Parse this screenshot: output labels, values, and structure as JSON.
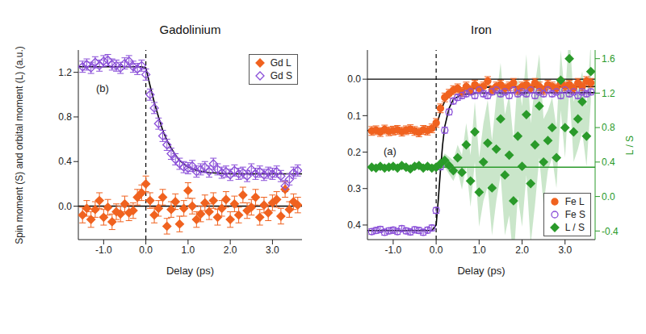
{
  "chart_data": [
    {
      "type": "scatter",
      "title": "Gadolinium",
      "x_label": "Delay (ps)",
      "y_label": "Spin moment (S) and orbital moment (L) (a.u.)",
      "annotation": "(b)",
      "legend": "upper right",
      "xlim": [
        -1.6,
        3.7
      ],
      "xticks": [
        {
          "value": -1,
          "label": "-1.0"
        },
        {
          "value": 0,
          "label": "0.0"
        },
        {
          "value": 1,
          "label": "1.0"
        },
        {
          "value": 2,
          "label": "2.0"
        },
        {
          "value": 3,
          "label": "3.0"
        }
      ],
      "ylim": [
        -0.3,
        1.4
      ],
      "yticks": [
        {
          "value": 0,
          "label": "0.0"
        },
        {
          "value": 0.4,
          "label": "0.4"
        },
        {
          "value": 0.8,
          "label": "0.8"
        },
        {
          "value": 1.2,
          "label": "1.2"
        }
      ],
      "reference_x": 0,
      "x": [
        -1.5,
        -1.4,
        -1.3,
        -1.2,
        -1.1,
        -1.0,
        -0.9,
        -0.8,
        -0.7,
        -0.6,
        -0.5,
        -0.4,
        -0.3,
        -0.2,
        -0.1,
        0.0,
        0.1,
        0.2,
        0.3,
        0.4,
        0.5,
        0.6,
        0.7,
        0.8,
        0.9,
        1.0,
        1.1,
        1.2,
        1.3,
        1.4,
        1.5,
        1.6,
        1.7,
        1.8,
        1.9,
        2.0,
        2.1,
        2.2,
        2.3,
        2.4,
        2.5,
        2.6,
        2.7,
        2.8,
        2.9,
        3.0,
        3.1,
        3.2,
        3.3,
        3.4,
        3.5,
        3.6
      ],
      "series": [
        {
          "name": "Gd L",
          "color": "#f0621f",
          "marker": "diamond",
          "error": 0.07,
          "values": [
            -0.08,
            -0.02,
            -0.12,
            -0.03,
            0.05,
            -0.1,
            -0.01,
            -0.14,
            -0.05,
            -0.07,
            0.02,
            -0.06,
            -0.04,
            0.08,
            0.12,
            0.2,
            0.05,
            -0.08,
            -0.02,
            0.08,
            -0.18,
            -0.03,
            0.04,
            -0.16,
            -0.02,
            0.14,
            0.0,
            -0.12,
            -0.07,
            0.03,
            -0.05,
            0.05,
            -0.1,
            -0.02,
            0.06,
            -0.12,
            0.02,
            -0.08,
            0.1,
            -0.04,
            -0.01,
            0.08,
            -0.1,
            0.01,
            -0.06,
            0.03,
            0.06,
            -0.09,
            0.15,
            -0.03,
            0.04,
            0.01
          ],
          "fit": {
            "color": "#000000",
            "x": [
              -1.6,
              3.7
            ],
            "values": [
              0,
              0
            ]
          }
        },
        {
          "name": "Gd S",
          "color": "#8a4fd8",
          "marker": "open_diamond",
          "error": 0.05,
          "values": [
            1.25,
            1.27,
            1.24,
            1.29,
            1.26,
            1.3,
            1.31,
            1.27,
            1.26,
            1.24,
            1.28,
            1.3,
            1.25,
            1.23,
            1.26,
            1.18,
            1.0,
            0.88,
            0.74,
            0.63,
            0.55,
            0.47,
            0.42,
            0.38,
            0.35,
            0.34,
            0.36,
            0.31,
            0.33,
            0.35,
            0.31,
            0.38,
            0.33,
            0.3,
            0.31,
            0.28,
            0.32,
            0.29,
            0.3,
            0.27,
            0.33,
            0.29,
            0.31,
            0.28,
            0.3,
            0.29,
            0.31,
            0.27,
            0.18,
            0.24,
            0.3,
            0.32
          ],
          "fit": {
            "color": "#000000",
            "x": [
              -1.6,
              -0.1,
              0.0,
              0.1,
              0.2,
              0.3,
              0.4,
              0.5,
              0.6,
              0.7,
              0.8,
              0.9,
              1.0,
              1.2,
              1.5,
              2.0,
              3.7
            ],
            "values": [
              1.25,
              1.25,
              1.24,
              1.08,
              0.93,
              0.8,
              0.68,
              0.59,
              0.52,
              0.46,
              0.41,
              0.38,
              0.35,
              0.32,
              0.3,
              0.29,
              0.29
            ]
          }
        }
      ]
    },
    {
      "type": "scatter",
      "title": "Iron",
      "x_label": "Delay (ps)",
      "y2_label": "L / S",
      "annotation": "(a)",
      "legend": "lower right",
      "xlim": [
        -1.6,
        3.7
      ],
      "xticks": [
        {
          "value": -1,
          "label": "-1.0"
        },
        {
          "value": 0,
          "label": "0.0"
        },
        {
          "value": 1,
          "label": "1.0"
        },
        {
          "value": 2,
          "label": "2.0"
        },
        {
          "value": 3,
          "label": "3.0"
        }
      ],
      "ylim": [
        0.44,
        -0.08
      ],
      "yticks": [
        {
          "value": 0,
          "label": "0.0"
        },
        {
          "value": 0.1,
          "label": "0.1"
        },
        {
          "value": 0.2,
          "label": "0.2"
        },
        {
          "value": 0.3,
          "label": "0.3"
        },
        {
          "value": 0.4,
          "label": "0.4"
        }
      ],
      "y2lim": [
        -0.5,
        1.7
      ],
      "y2ticks": [
        {
          "value": -0.4,
          "label": "-0.4"
        },
        {
          "value": 0,
          "label": "0.0"
        },
        {
          "value": 0.4,
          "label": "0.4"
        },
        {
          "value": 0.8,
          "label": "0.8"
        },
        {
          "value": 1.2,
          "label": "1.2"
        },
        {
          "value": 1.6,
          "label": "1.6"
        }
      ],
      "reference_x": 0,
      "reference_y": 0,
      "x": [
        -1.5,
        -1.4,
        -1.3,
        -1.2,
        -1.1,
        -1.0,
        -0.9,
        -0.8,
        -0.7,
        -0.6,
        -0.5,
        -0.4,
        -0.3,
        -0.2,
        -0.1,
        0.0,
        0.1,
        0.2,
        0.3,
        0.4,
        0.5,
        0.6,
        0.7,
        0.8,
        0.9,
        1.0,
        1.1,
        1.2,
        1.3,
        1.4,
        1.5,
        1.6,
        1.7,
        1.8,
        1.9,
        2.0,
        2.1,
        2.2,
        2.3,
        2.4,
        2.5,
        2.6,
        2.7,
        2.8,
        2.9,
        3.0,
        3.1,
        3.2,
        3.3,
        3.4,
        3.5,
        3.6
      ],
      "series": [
        {
          "name": "Fe L",
          "color": "#f0621f",
          "marker": "circle",
          "error": 0.012,
          "values": [
            0.142,
            0.14,
            0.145,
            0.138,
            0.143,
            0.141,
            0.139,
            0.144,
            0.14,
            0.137,
            0.142,
            0.146,
            0.139,
            0.141,
            0.135,
            0.12,
            0.08,
            0.05,
            0.04,
            0.03,
            0.025,
            0.035,
            0.02,
            0.03,
            0.015,
            0.025,
            0.02,
            0.005,
            0.03,
            0.02,
            0.015,
            0.025,
            0.02,
            0.01,
            0.03,
            0.02,
            0.015,
            0.025,
            0.01,
            0.02,
            0.03,
            0.015,
            0.02,
            0.025,
            0.01,
            0.02,
            0.015,
            0.025,
            0.01,
            0.02,
            0.005,
            0.01
          ],
          "fit": {
            "color": "#000000",
            "x": [
              -1.6,
              -0.1,
              0.0,
              0.1,
              0.2,
              0.3,
              0.5,
              1.0,
              3.7
            ],
            "values": [
              0.141,
              0.141,
              0.13,
              0.09,
              0.06,
              0.045,
              0.03,
              0.022,
              0.02
            ]
          }
        },
        {
          "name": "Fe S",
          "color": "#8a4fd8",
          "marker": "open_circle",
          "error": 0.008,
          "values": [
            0.418,
            0.415,
            0.412,
            0.42,
            0.416,
            0.414,
            0.418,
            0.41,
            0.416,
            0.419,
            0.413,
            0.415,
            0.42,
            0.414,
            0.408,
            0.36,
            0.24,
            0.14,
            0.09,
            0.06,
            0.05,
            0.045,
            0.04,
            0.035,
            0.045,
            0.03,
            0.04,
            0.045,
            0.035,
            0.03,
            0.04,
            0.035,
            0.045,
            0.03,
            0.04,
            0.035,
            0.04,
            0.03,
            0.045,
            0.035,
            0.04,
            0.03,
            0.04,
            0.035,
            0.045,
            0.03,
            0.04,
            0.035,
            0.045,
            0.035,
            0.04,
            0.035
          ],
          "fit": {
            "color": "#000000",
            "x": [
              -1.6,
              -0.1,
              0.0,
              0.05,
              0.1,
              0.15,
              0.2,
              0.3,
              0.4,
              0.6,
              1.0,
              3.7
            ],
            "values": [
              0.415,
              0.415,
              0.4,
              0.33,
              0.25,
              0.18,
              0.13,
              0.08,
              0.055,
              0.042,
              0.038,
              0.037
            ]
          }
        },
        {
          "name": "L / S",
          "color": "#2a9a2a",
          "marker": "diamond",
          "axis": "y2",
          "values": [
            0.34,
            0.33,
            0.35,
            0.33,
            0.34,
            0.35,
            0.33,
            0.36,
            0.34,
            0.32,
            0.35,
            0.36,
            0.33,
            0.35,
            0.33,
            0.34,
            0.38,
            0.42,
            0.36,
            0.3,
            0.45,
            0.28,
            0.6,
            0.18,
            0.75,
            0.05,
            0.4,
            0.62,
            0.1,
            0.55,
            0.9,
            0.25,
            0.48,
            -0.05,
            0.7,
            0.35,
            0.95,
            0.15,
            0.6,
            1.05,
            0.4,
            0.65,
            0.8,
            0.45,
            1.35,
            0.8,
            1.6,
            0.75,
            0.9,
            1.1,
            0.7,
            1.45
          ],
          "band": [
            0.04,
            0.04,
            0.04,
            0.04,
            0.04,
            0.04,
            0.04,
            0.04,
            0.04,
            0.04,
            0.04,
            0.04,
            0.04,
            0.04,
            0.04,
            0.05,
            0.06,
            0.08,
            0.1,
            0.12,
            0.15,
            0.2,
            0.25,
            0.3,
            0.35,
            0.4,
            0.45,
            0.5,
            0.55,
            0.6,
            0.65,
            0.7,
            0.7,
            0.7,
            0.7,
            0.7,
            0.7,
            0.7,
            0.7,
            0.6,
            0.5,
            0.35,
            0.35,
            0.35,
            0.35,
            0.35,
            0.35,
            0.35,
            0.35,
            0.35,
            0.35,
            0.35
          ],
          "fit": {
            "color": "#2a9a2a",
            "x": [
              -1.6,
              3.7
            ],
            "values": [
              0.34,
              0.34
            ]
          }
        }
      ]
    }
  ]
}
